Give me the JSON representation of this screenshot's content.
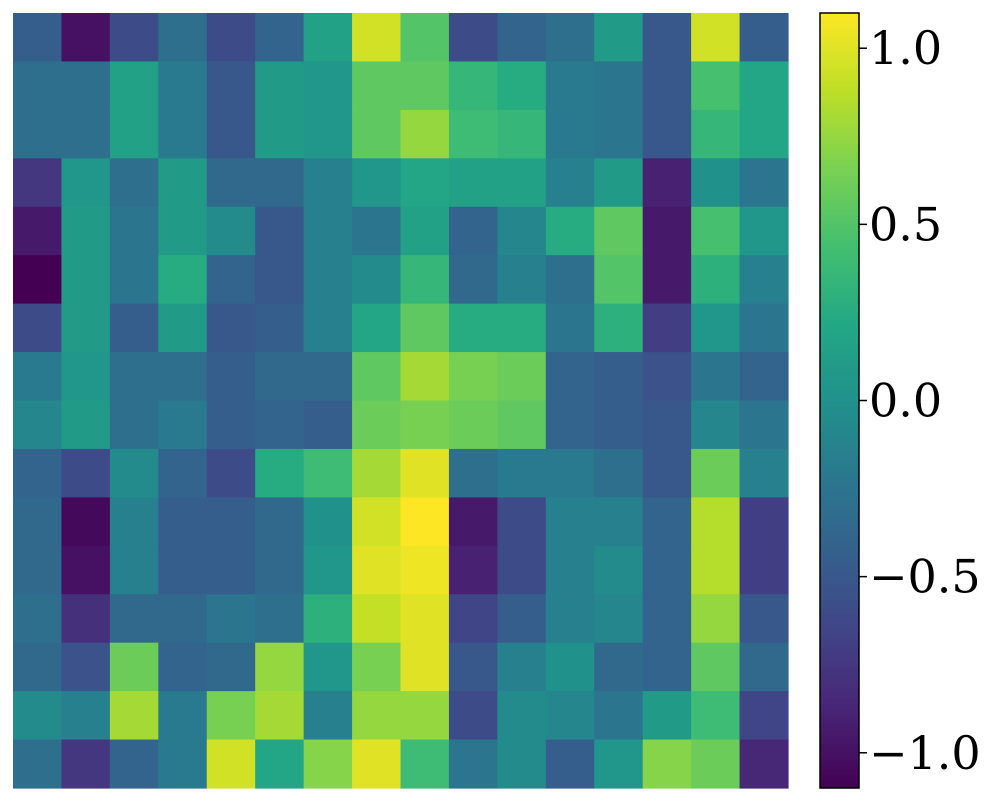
{
  "chart_data": {
    "type": "heatmap",
    "title": "",
    "xlabel": "",
    "ylabel": "",
    "rows": 16,
    "cols": 16,
    "colormap": "viridis",
    "vmin": -1.1,
    "vmax": 1.1,
    "colorbar": {
      "ticks": [
        1.0,
        0.5,
        0.0,
        -0.5,
        -1.0
      ],
      "tick_labels": [
        "1.0",
        "0.5",
        "0.0",
        "−0.5",
        "−1.0"
      ]
    },
    "values": [
      [
        -0.45,
        -1.0,
        -0.6,
        -0.3,
        -0.6,
        -0.4,
        0.15,
        0.95,
        0.5,
        -0.6,
        -0.4,
        -0.3,
        0.1,
        -0.5,
        0.95,
        -0.45
      ],
      [
        -0.3,
        -0.3,
        0.15,
        -0.2,
        -0.5,
        0.1,
        0.05,
        0.55,
        0.55,
        0.35,
        0.25,
        -0.2,
        -0.25,
        -0.5,
        0.45,
        0.2
      ],
      [
        -0.3,
        -0.3,
        0.15,
        -0.2,
        -0.5,
        0.1,
        0.05,
        0.55,
        0.75,
        0.4,
        0.35,
        -0.2,
        -0.25,
        -0.5,
        0.35,
        0.2
      ],
      [
        -0.75,
        0.05,
        -0.3,
        0.1,
        -0.35,
        -0.35,
        -0.15,
        0.05,
        0.2,
        0.15,
        0.15,
        -0.15,
        0.1,
        -0.9,
        0.0,
        -0.25
      ],
      [
        -0.95,
        0.1,
        -0.25,
        0.1,
        -0.05,
        -0.5,
        -0.15,
        -0.25,
        0.15,
        -0.4,
        -0.1,
        0.25,
        0.55,
        -0.95,
        0.45,
        0.05
      ],
      [
        -1.1,
        0.1,
        -0.25,
        0.25,
        -0.4,
        -0.5,
        -0.15,
        -0.05,
        0.35,
        -0.35,
        -0.15,
        -0.3,
        0.5,
        -0.95,
        0.3,
        -0.15
      ],
      [
        -0.6,
        0.1,
        -0.45,
        0.1,
        -0.5,
        -0.45,
        -0.15,
        0.2,
        0.55,
        0.25,
        0.25,
        -0.25,
        0.3,
        -0.7,
        0.05,
        -0.25
      ],
      [
        -0.2,
        0.05,
        -0.3,
        -0.3,
        -0.45,
        -0.35,
        -0.35,
        0.55,
        0.8,
        0.65,
        0.6,
        -0.4,
        -0.45,
        -0.55,
        -0.25,
        -0.4
      ],
      [
        -0.1,
        0.1,
        -0.3,
        -0.2,
        -0.45,
        -0.4,
        -0.45,
        0.6,
        0.65,
        0.6,
        0.55,
        -0.4,
        -0.45,
        -0.5,
        -0.1,
        -0.25
      ],
      [
        -0.4,
        -0.6,
        -0.05,
        -0.4,
        -0.6,
        0.25,
        0.4,
        0.8,
        1.0,
        -0.3,
        -0.2,
        -0.2,
        -0.3,
        -0.5,
        0.6,
        -0.15
      ],
      [
        -0.35,
        -1.05,
        -0.15,
        -0.45,
        -0.45,
        -0.35,
        0.0,
        0.95,
        1.1,
        -0.95,
        -0.6,
        -0.15,
        -0.15,
        -0.4,
        0.85,
        -0.7
      ],
      [
        -0.35,
        -1.0,
        -0.15,
        -0.45,
        -0.45,
        -0.35,
        0.05,
        1.0,
        1.05,
        -0.9,
        -0.6,
        -0.15,
        -0.05,
        -0.4,
        0.85,
        -0.7
      ],
      [
        -0.3,
        -0.8,
        -0.35,
        -0.35,
        -0.25,
        -0.3,
        0.3,
        0.9,
        1.0,
        -0.65,
        -0.45,
        -0.15,
        -0.1,
        -0.4,
        0.75,
        -0.5
      ],
      [
        -0.35,
        -0.55,
        0.6,
        -0.4,
        -0.35,
        0.75,
        0.05,
        0.65,
        1.0,
        -0.5,
        -0.15,
        0.0,
        -0.35,
        -0.4,
        0.55,
        -0.35
      ],
      [
        -0.05,
        -0.15,
        0.8,
        -0.2,
        0.65,
        0.8,
        -0.15,
        0.75,
        0.75,
        -0.6,
        -0.05,
        -0.1,
        -0.25,
        0.1,
        0.4,
        -0.65
      ],
      [
        -0.3,
        -0.75,
        -0.4,
        -0.2,
        0.95,
        0.2,
        0.7,
        1.0,
        0.4,
        -0.25,
        -0.05,
        -0.45,
        0.05,
        0.7,
        0.6,
        -0.85
      ]
    ]
  }
}
